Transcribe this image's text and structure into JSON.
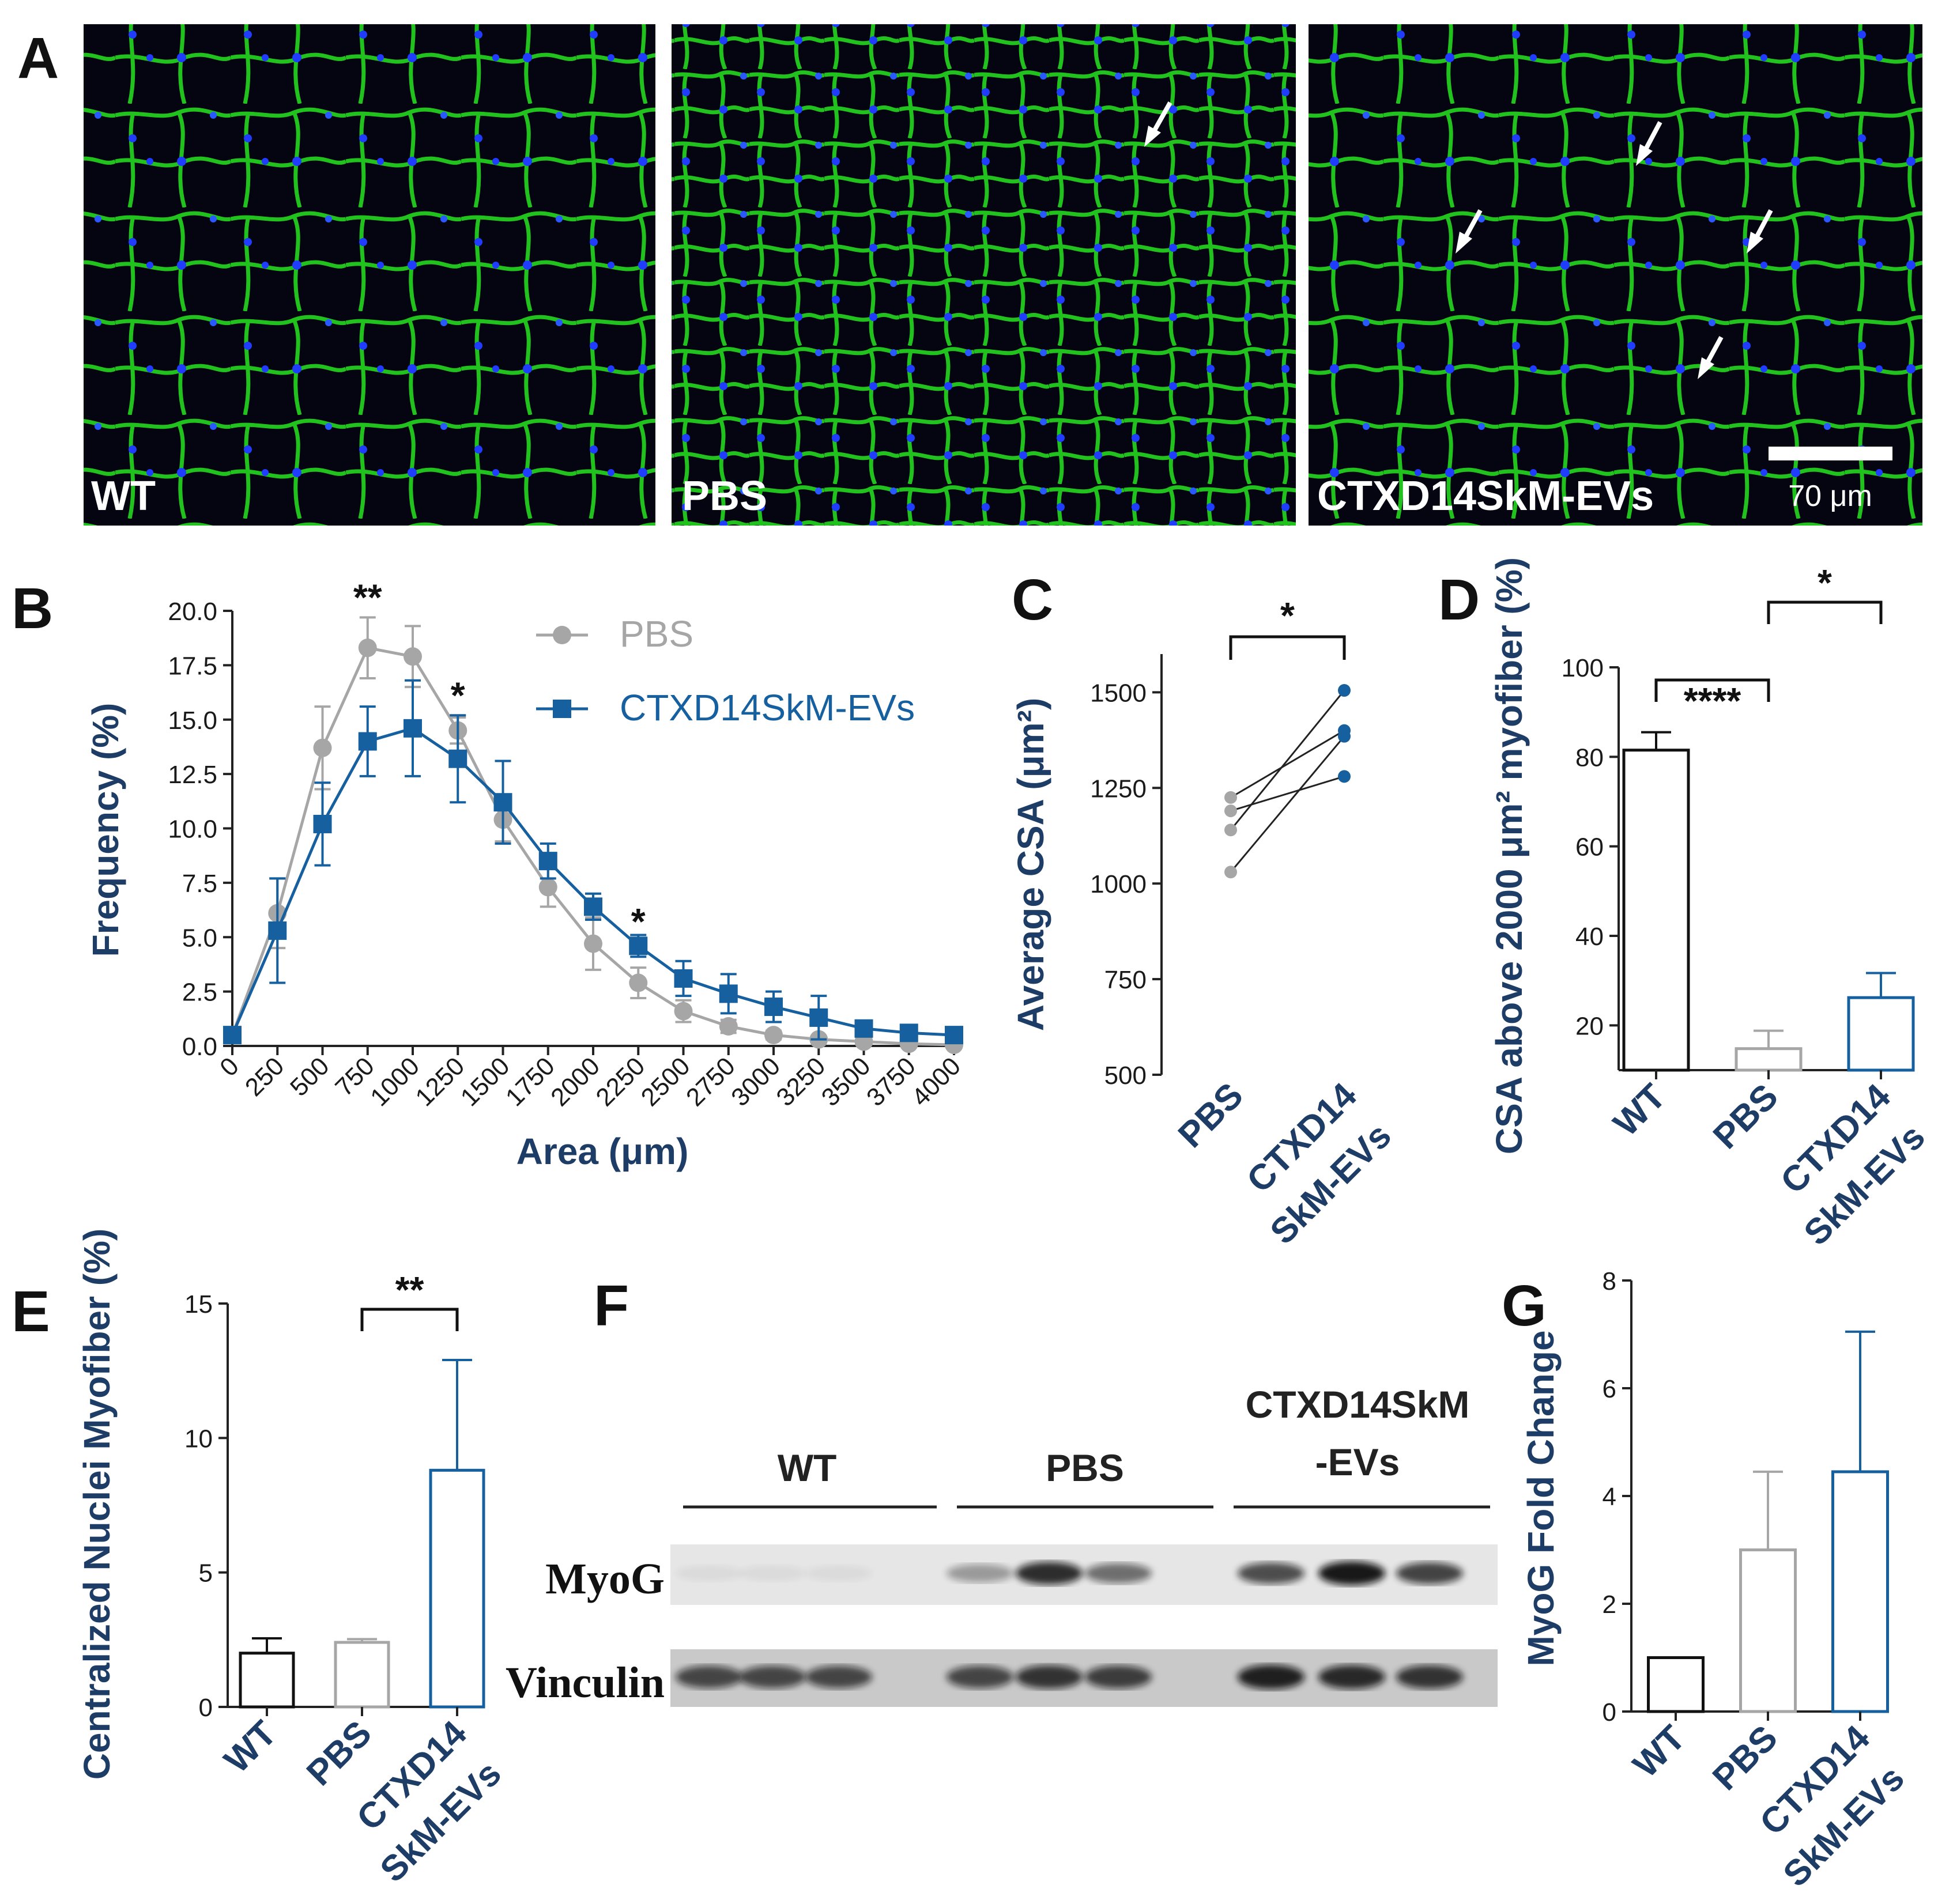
{
  "panel_letters": [
    "A",
    "B",
    "C",
    "D",
    "E",
    "F",
    "G"
  ],
  "colors": {
    "pbs": "#a6a6a6",
    "ctx": "#16609f",
    "wt": "#111111",
    "axis_title": "#1e3d66",
    "membrane": "#22c21e",
    "nuclei": "#1f3cff"
  },
  "panel_a": {
    "images": [
      {
        "label": "WT",
        "arrows": 0
      },
      {
        "label": "PBS",
        "arrows": 1
      },
      {
        "label": "CTXD14SkM-EVs",
        "arrows": 4
      }
    ],
    "scale_bar": "70 μm"
  },
  "panel_f": {
    "groups": [
      "WT",
      "PBS",
      "CTXD14SkM\n-EVs"
    ],
    "group_line1": [
      "WT",
      "PBS",
      "CTXD14SkM"
    ],
    "group_line2": [
      "",
      "",
      "-EVs"
    ],
    "rows": [
      "MyoG",
      "Vinculin"
    ],
    "myog_band_intensity": [
      0.05,
      0.05,
      0.05,
      0.35,
      0.85,
      0.55,
      0.7,
      0.95,
      0.75
    ],
    "vinculin_band_intensity": [
      0.7,
      0.7,
      0.7,
      0.7,
      0.8,
      0.75,
      0.9,
      0.85,
      0.8
    ]
  },
  "chart_data": [
    {
      "panel": "B",
      "type": "line",
      "xlabel": "Area (μm)",
      "ylabel": "Frequency (%)",
      "ylim": [
        0,
        20
      ],
      "x_ticks": [
        "0",
        "250",
        "500",
        "750",
        "1000",
        "1250",
        "1500",
        "1750",
        "2000",
        "2250",
        "2500",
        "2750",
        "3000",
        "3250",
        "3500",
        "3750",
        "4000"
      ],
      "y_ticks": [
        "0.0",
        "2.5",
        "5.0",
        "7.5",
        "10.0",
        "12.5",
        "15.0",
        "17.5",
        "20.0"
      ],
      "series": [
        {
          "name": "PBS",
          "marker": "circle",
          "values": [
            0.5,
            6.1,
            13.7,
            18.3,
            17.9,
            14.5,
            10.4,
            7.3,
            4.7,
            2.9,
            1.6,
            0.9,
            0.5,
            0.3,
            0.2,
            0.1,
            0.05
          ],
          "errors": [
            0.2,
            1.6,
            1.9,
            1.4,
            1.4,
            0.6,
            1.0,
            0.9,
            1.2,
            0.7,
            0.5,
            0.3,
            0.2,
            0.1,
            0.1,
            0.1,
            0.05
          ]
        },
        {
          "name": "CTXD14SkM-EVs",
          "marker": "square",
          "values": [
            0.5,
            5.3,
            10.2,
            14.0,
            14.6,
            13.2,
            11.2,
            8.5,
            6.4,
            4.6,
            3.1,
            2.4,
            1.8,
            1.3,
            0.8,
            0.6,
            0.5
          ],
          "errors": [
            0.2,
            2.4,
            1.9,
            1.6,
            2.2,
            2.0,
            1.9,
            0.8,
            0.6,
            0.5,
            0.8,
            0.9,
            0.7,
            1.0,
            0.3,
            0.3,
            0.2
          ]
        }
      ],
      "annotations": [
        {
          "text": "**",
          "x_index": 3,
          "y": 20.3
        },
        {
          "text": "*",
          "x_index": 5,
          "y": 15.8
        },
        {
          "text": "*",
          "x_index": 9,
          "y": 5.4
        }
      ]
    },
    {
      "panel": "C",
      "type": "scatter",
      "ylabel": "Average CSA (μm²)",
      "ylim": [
        500,
        1600
      ],
      "y_ticks": [
        "500",
        "750",
        "1000",
        "1250",
        "1500"
      ],
      "categories": [
        "PBS",
        "CTXD14\nSkM-EVs"
      ],
      "category_lines": [
        [
          "PBS"
        ],
        [
          "CTXD14",
          "SkM-EVs"
        ]
      ],
      "pairs": [
        [
          1225,
          1400
        ],
        [
          1190,
          1280
        ],
        [
          1140,
          1505
        ],
        [
          1030,
          1385
        ]
      ],
      "significance": "*"
    },
    {
      "panel": "D",
      "type": "bar",
      "ylabel": "CSA above 2000 μm² myofiber (%)",
      "ylim": [
        10,
        100
      ],
      "y_ticks": [
        "20",
        "40",
        "60",
        "80",
        "100"
      ],
      "categories": [
        "WT",
        "PBS",
        "CTXD14\nSkM-EVs"
      ],
      "category_lines": [
        [
          "WT"
        ],
        [
          "PBS"
        ],
        [
          "CTXD14",
          "SkM-EVs"
        ]
      ],
      "values": [
        81.5,
        14.8,
        26.2
      ],
      "errors": [
        4.0,
        4.0,
        5.5
      ],
      "significance": [
        {
          "between": [
            0,
            1
          ],
          "text": "****"
        },
        {
          "between": [
            1,
            2
          ],
          "text": "*"
        }
      ]
    },
    {
      "panel": "E",
      "type": "bar",
      "ylabel": "Centralized Nuclei Myofiber (%)",
      "ylim": [
        0,
        15
      ],
      "y_ticks": [
        "0",
        "5",
        "10",
        "15"
      ],
      "categories": [
        "WT",
        "PBS",
        "CTXD14\nSkM-EVs"
      ],
      "category_lines": [
        [
          "WT"
        ],
        [
          "PBS"
        ],
        [
          "CTXD14",
          "SkM-EVs"
        ]
      ],
      "values": [
        2.0,
        2.4,
        8.8
      ],
      "errors": [
        0.55,
        0.12,
        4.1
      ],
      "significance": [
        {
          "between": [
            1,
            2
          ],
          "text": "**"
        }
      ]
    },
    {
      "panel": "G",
      "type": "bar",
      "ylabel": "MyoG Fold Change",
      "ylim": [
        0,
        8
      ],
      "y_ticks": [
        "0",
        "2",
        "4",
        "6",
        "8"
      ],
      "categories": [
        "WT",
        "PBS",
        "CTXD14\nSkM-EVs"
      ],
      "category_lines": [
        [
          "WT"
        ],
        [
          "PBS"
        ],
        [
          "CTXD14",
          "SkM-EVs"
        ]
      ],
      "values": [
        1.0,
        3.0,
        4.45
      ],
      "errors": [
        0.0,
        1.45,
        2.6
      ]
    }
  ]
}
